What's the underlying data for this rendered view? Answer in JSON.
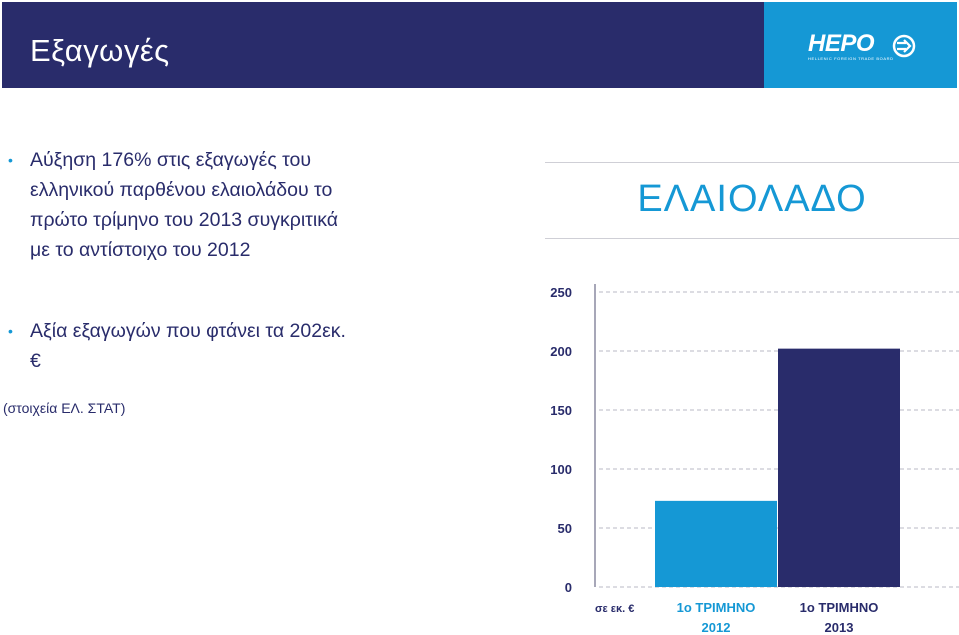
{
  "header": {
    "title": "Εξαγωγές",
    "logo_text": "HEPO",
    "logo_tagline": "HELLENIC FOREIGN TRADE BOARD"
  },
  "bullets": [
    {
      "text": "Αύξηση 176% στις εξαγωγές του  ελληνικού παρθένου ελαιολάδου το πρώτο τρίμηνο του 2013 συγκριτικά με το αντίστοιχο του 2012"
    },
    {
      "text": "Αξία εξαγωγών που φτάνει τα 202εκ. €"
    }
  ],
  "source_note": "(στοιχεία ΕΛ. ΣΤΑΤ)",
  "colors": {
    "navy": "#292c6b",
    "blue": "#1598d5"
  },
  "chart_data": {
    "type": "bar",
    "title": "ΕΛΑΙΟΛΑΔΟ",
    "unit_label": "σε εκ. €",
    "categories": [
      "1ο ΤΡΙΜΗΝΟ 2012",
      "1ο ΤΡΙΜΗΝΟ 2013"
    ],
    "category_lines": [
      [
        "1ο ΤΡΙΜΗΝΟ",
        "2012"
      ],
      [
        "1ο ΤΡΙΜΗΝΟ",
        "2013"
      ]
    ],
    "values": [
      73,
      202
    ],
    "bar_colors": [
      "#1598d5",
      "#292c6b"
    ],
    "ylim": [
      0,
      250
    ],
    "yticks": [
      "250",
      "200",
      "150",
      "100",
      "50",
      "0"
    ],
    "grid": true
  }
}
